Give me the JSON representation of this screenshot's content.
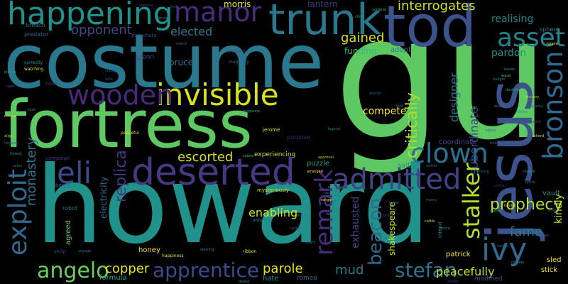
{
  "wordcloud": {
    "background": "#000000",
    "words": [
      {
        "text": "gu",
        "color": "#5ec962",
        "vertical": false
      },
      {
        "text": "howard",
        "color": "#21918c",
        "vertical": false
      },
      {
        "text": "costume",
        "color": "#2a788e",
        "vertical": false
      },
      {
        "text": "fortress",
        "color": "#5ec962",
        "vertical": false
      },
      {
        "text": "jesus",
        "color": "#3b528b",
        "vertical": true
      },
      {
        "text": "tod",
        "color": "#3b528b",
        "vertical": false
      },
      {
        "text": "trunk",
        "color": "#2a788e",
        "vertical": false
      },
      {
        "text": "deserted",
        "color": "#443983",
        "vertical": false
      },
      {
        "text": "invisible",
        "color": "#d8e219",
        "vertical": false
      },
      {
        "text": "happening",
        "color": "#21918c",
        "vertical": false
      },
      {
        "text": "manor",
        "color": "#472d7b",
        "vertical": false
      },
      {
        "text": "wooden",
        "color": "#482878",
        "vertical": false
      },
      {
        "text": "bronson",
        "color": "#31688e",
        "vertical": true
      },
      {
        "text": "ivy",
        "color": "#31688e",
        "vertical": false
      },
      {
        "text": "clown",
        "color": "#2c728e",
        "vertical": false
      },
      {
        "text": "eli",
        "color": "#3e4989",
        "vertical": false
      },
      {
        "text": "admitted",
        "color": "#414487",
        "vertical": false
      },
      {
        "text": "exploit",
        "color": "#31688e",
        "vertical": true
      },
      {
        "text": "asset",
        "color": "#26828e",
        "vertical": false
      },
      {
        "text": "remark",
        "color": "#472d7b",
        "vertical": true
      },
      {
        "text": "apprentice",
        "color": "#3e4989",
        "vertical": false
      },
      {
        "text": "angelo",
        "color": "#6ccd5a",
        "vertical": false
      },
      {
        "text": "stefan",
        "color": "#2c728e",
        "vertical": false
      },
      {
        "text": "stalker",
        "color": "#b5de2b",
        "vertical": true
      },
      {
        "text": "beacon",
        "color": "#31688e",
        "vertical": true
      },
      {
        "text": "critically",
        "color": "#addc30",
        "vertical": true
      },
      {
        "text": "prophecy",
        "color": "#b5de2b",
        "vertical": false
      },
      {
        "text": "interrogates",
        "color": "#d0e11c",
        "vertical": false
      },
      {
        "text": "opponent",
        "color": "#3e4989",
        "vertical": false
      },
      {
        "text": "escorted",
        "color": "#d8e219",
        "vertical": false
      },
      {
        "text": "replica",
        "color": "#443983",
        "vertical": true
      },
      {
        "text": "monastery",
        "color": "#2c728e",
        "vertical": true
      },
      {
        "text": "elected",
        "color": "#2a788e",
        "vertical": false
      },
      {
        "text": "gained",
        "color": "#d8e219",
        "vertical": false
      },
      {
        "text": "parole",
        "color": "#e5e419",
        "vertical": false
      },
      {
        "text": "copper",
        "color": "#e5e419",
        "vertical": false
      },
      {
        "text": "mud",
        "color": "#2a788e",
        "vertical": false
      },
      {
        "text": "enabling",
        "color": "#d0e11c",
        "vertical": false
      },
      {
        "text": "fame",
        "color": "#2a788e",
        "vertical": false
      },
      {
        "text": "peacefully",
        "color": "#bddf26",
        "vertical": false
      },
      {
        "text": "subordinate",
        "color": "#3e4989",
        "vertical": true
      },
      {
        "text": "designer",
        "color": "#2c728e",
        "vertical": true
      },
      {
        "text": "exhausted",
        "color": "#3e4989",
        "vertical": true
      },
      {
        "text": "shakespeare",
        "color": "#d0e11c",
        "vertical": true
      },
      {
        "text": "kindly",
        "color": "#bddf26",
        "vertical": true
      },
      {
        "text": "pardon",
        "color": "#21918c",
        "vertical": false
      },
      {
        "text": "compete",
        "color": "#fde725",
        "vertical": false
      },
      {
        "text": "funding",
        "color": "#35b779",
        "vertical": false
      },
      {
        "text": "realising",
        "color": "#26828e",
        "vertical": false
      },
      {
        "text": "morris",
        "color": "#e5e419",
        "vertical": false
      },
      {
        "text": "lantern",
        "color": "#443983",
        "vertical": false
      },
      {
        "text": "bruce",
        "color": "#2c728e",
        "vertical": false
      },
      {
        "text": "electricity",
        "color": "#31688e",
        "vertical": true
      },
      {
        "text": "adopt",
        "color": "#2a788e",
        "vertical": false
      },
      {
        "text": "coordinate",
        "color": "#3e4989",
        "vertical": false
      },
      {
        "text": "puzzle",
        "color": "#1fa088",
        "vertical": false
      },
      {
        "text": "salt",
        "color": "#21918c",
        "vertical": false
      },
      {
        "text": "patrick",
        "color": "#fde725",
        "vertical": false
      },
      {
        "text": "stick",
        "color": "#fde725",
        "vertical": false
      },
      {
        "text": "sled",
        "color": "#fde725",
        "vertical": false
      },
      {
        "text": "vault",
        "color": "#21918c",
        "vertical": false
      },
      {
        "text": "honey",
        "color": "#fde725",
        "vertical": false
      },
      {
        "text": "agreed",
        "color": "#6ccd5a",
        "vertical": true
      },
      {
        "text": "formula",
        "color": "#1fa088",
        "vertical": false
      },
      {
        "text": "hate",
        "color": "#21918c",
        "vertical": false
      },
      {
        "text": "glenn",
        "color": "#3e4989",
        "vertical": false
      },
      {
        "text": "experiencing",
        "color": "#d0e11c",
        "vertical": false
      },
      {
        "text": "purpose",
        "color": "#482878",
        "vertical": false
      },
      {
        "text": "sphere",
        "color": "#26828e",
        "vertical": false
      },
      {
        "text": "breach",
        "color": "#2c728e",
        "vertical": false
      },
      {
        "text": "predator",
        "color": "#31688e",
        "vertical": false
      },
      {
        "text": "parachute",
        "color": "#3e4989",
        "vertical": false
      },
      {
        "text": "robot",
        "color": "#2a788e",
        "vertical": false
      },
      {
        "text": "campaign",
        "color": "#443983",
        "vertical": false
      },
      {
        "text": "beam",
        "color": "#31688e",
        "vertical": false
      },
      {
        "text": "modified",
        "color": "#3e4989",
        "vertical": false
      },
      {
        "text": "intend",
        "color": "#21918c",
        "vertical": true
      },
      {
        "text": "romeo",
        "color": "#2c728e",
        "vertical": false
      },
      {
        "text": "jerome",
        "color": "#e5e419",
        "vertical": false
      },
      {
        "text": "mysteriously",
        "color": "#d0e11c",
        "vertical": false
      },
      {
        "text": "progress",
        "color": "#3e4989",
        "vertical": false
      },
      {
        "text": "magically",
        "color": "#31688e",
        "vertical": false
      },
      {
        "text": "peaceful",
        "color": "#e5e419",
        "vertical": false
      },
      {
        "text": "happiness",
        "color": "#d8e219",
        "vertical": false
      },
      {
        "text": "antonio",
        "color": "#26828e",
        "vertical": false
      },
      {
        "text": "philip",
        "color": "#3e4989",
        "vertical": false
      },
      {
        "text": "ribbon",
        "color": "#e5e419",
        "vertical": false
      },
      {
        "text": "colin",
        "color": "#3e4989",
        "vertical": false
      },
      {
        "text": "correctly",
        "color": "#1fa088",
        "vertical": false
      },
      {
        "text": "watching",
        "color": "#d0e11c",
        "vertical": false
      },
      {
        "text": "align",
        "color": "#b5de2b",
        "vertical": false
      },
      {
        "text": "torpedo",
        "color": "#31688e",
        "vertical": false
      },
      {
        "text": "laptop",
        "color": "#3e4989",
        "vertical": false
      },
      {
        "text": "hint",
        "color": "#2c728e",
        "vertical": false
      },
      {
        "text": "lock",
        "color": "#21918c",
        "vertical": false
      },
      {
        "text": "bull",
        "color": "#1fa088",
        "vertical": false
      },
      {
        "text": "salute",
        "color": "#35b779",
        "vertical": false
      },
      {
        "text": "magazine",
        "color": "#1fa088",
        "vertical": false
      },
      {
        "text": "fella",
        "color": "#3e4989",
        "vertical": false
      },
      {
        "text": "lesson",
        "color": "#21918c",
        "vertical": false
      },
      {
        "text": "badger",
        "color": "#2c728e",
        "vertical": false
      },
      {
        "text": "desktop",
        "color": "#1fa088",
        "vertical": false
      },
      {
        "text": "ignore",
        "color": "#fde725",
        "vertical": false
      },
      {
        "text": "doubt",
        "color": "#2c728e",
        "vertical": false
      },
      {
        "text": "surprise",
        "color": "#35b779",
        "vertical": false
      },
      {
        "text": "vocal",
        "color": "#6ccd5a",
        "vertical": false
      },
      {
        "text": "approval",
        "color": "#addc30",
        "vertical": false
      },
      {
        "text": "arranged",
        "color": "#fde725",
        "vertical": false
      },
      {
        "text": "rap",
        "color": "#2c728e",
        "vertical": false
      },
      {
        "text": "starring",
        "color": "#26828e",
        "vertical": false
      },
      {
        "text": "belief",
        "color": "#1fa088",
        "vertical": false
      },
      {
        "text": "mercy",
        "color": "#2c728e",
        "vertical": false
      },
      {
        "text": "dinner",
        "color": "#443983",
        "vertical": false
      },
      {
        "text": "shrine",
        "color": "#21918c",
        "vertical": false
      },
      {
        "text": "enemy",
        "color": "#31688e",
        "vertical": false
      },
      {
        "text": "scandal",
        "color": "#6ccd5a",
        "vertical": false
      },
      {
        "text": "doctor",
        "color": "#3e4989",
        "vertical": false
      },
      {
        "text": "bravery",
        "color": "#addc30",
        "vertical": false
      },
      {
        "text": "chord",
        "color": "#d0e11c",
        "vertical": false
      },
      {
        "text": "forest",
        "color": "#31688e",
        "vertical": false
      },
      {
        "text": "fencing",
        "color": "#2c728e",
        "vertical": false
      },
      {
        "text": "soldier",
        "color": "#482878",
        "vertical": false
      },
      {
        "text": "charter",
        "color": "#1fa088",
        "vertical": false
      },
      {
        "text": "retire",
        "color": "#2a788e",
        "vertical": false
      },
      {
        "text": "tunnel",
        "color": "#d8e219",
        "vertical": false
      },
      {
        "text": "memo",
        "color": "#1fa088",
        "vertical": false
      },
      {
        "text": "ticket",
        "color": "#3e4989",
        "vertical": false
      },
      {
        "text": "witness",
        "color": "#2c728e",
        "vertical": false
      },
      {
        "text": "harbor",
        "color": "#31688e",
        "vertical": false
      },
      {
        "text": "climate",
        "color": "#21918c",
        "vertical": false
      },
      {
        "text": "ranger",
        "color": "#d8e219",
        "vertical": false
      },
      {
        "text": "spear",
        "color": "#31688e",
        "vertical": false
      },
      {
        "text": "brave",
        "color": "#3e4989",
        "vertical": false
      },
      {
        "text": "cattle",
        "color": "#d0e11c",
        "vertical": false
      },
      {
        "text": "victim",
        "color": "#2c728e",
        "vertical": false
      },
      {
        "text": "fence",
        "color": "#21918c",
        "vertical": false
      },
      {
        "text": "anchor",
        "color": "#31688e",
        "vertical": false
      },
      {
        "text": "pledge",
        "color": "#1fa088",
        "vertical": false
      },
      {
        "text": "cabin",
        "color": "#3e4989",
        "vertical": false
      },
      {
        "text": "rescue",
        "color": "#d8e219",
        "vertical": false
      },
      {
        "text": "voyage",
        "color": "#2c728e",
        "vertical": false
      },
      {
        "text": "divine",
        "color": "#1fa088",
        "vertical": false
      },
      {
        "text": "maker",
        "color": "#26828e",
        "vertical": false
      },
      {
        "text": "guard",
        "color": "#31688e",
        "vertical": false
      },
      {
        "text": "target",
        "color": "#3e4989",
        "vertical": false
      },
      {
        "text": "thread",
        "color": "#21918c",
        "vertical": false
      },
      {
        "text": "sailor",
        "color": "#2c728e",
        "vertical": false
      },
      {
        "text": "oath",
        "color": "#35b779",
        "vertical": false
      },
      {
        "text": "island",
        "color": "#31688e",
        "vertical": false
      },
      {
        "text": "venture",
        "color": "#3e4989",
        "vertical": false
      },
      {
        "text": "border",
        "color": "#2c728e",
        "vertical": false
      },
      {
        "text": "clinic",
        "color": "#1fa088",
        "vertical": false
      },
      {
        "text": "signal",
        "color": "#31688e",
        "vertical": false
      },
      {
        "text": "legend",
        "color": "#26828e",
        "vertical": false
      }
    ]
  }
}
